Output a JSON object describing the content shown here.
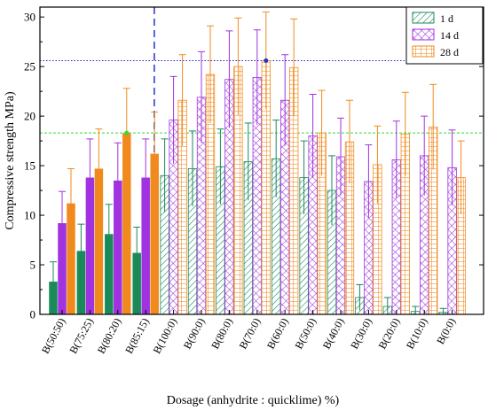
{
  "chart_data": {
    "type": "bar",
    "xlabel": "Dosage (anhydrite : quicklime) %)",
    "ylabel": "Compressive strength  MPa)",
    "ylim": [
      0,
      31
    ],
    "yticks": [
      0,
      5,
      10,
      15,
      20,
      25,
      30
    ],
    "categories": [
      "B(50:50)",
      "B(75:25)",
      "B(80:20)",
      "B(85:15)",
      "B(100:0)",
      "B(90:0)",
      "B(80:0)",
      "B(70:0)",
      "B(60:0)",
      "B(50:0)",
      "B(40:0)",
      "B(30:0)",
      "B(20:0)",
      "B(10:0)",
      "B(0:0)"
    ],
    "solid_categories": 4,
    "series": [
      {
        "name": "1 d",
        "color": "#1a8a5a",
        "values": [
          3.3,
          6.4,
          8.1,
          6.2,
          14.0,
          14.7,
          14.9,
          15.4,
          15.7,
          13.8,
          12.5,
          1.7,
          0.8,
          0.3,
          0.2
        ],
        "errors": [
          2.0,
          2.7,
          3.0,
          2.6,
          3.7,
          3.8,
          3.8,
          3.9,
          3.9,
          3.7,
          3.5,
          1.3,
          0.9,
          0.5,
          0.4
        ]
      },
      {
        "name": "14 d",
        "color": "#a032e0",
        "values": [
          9.2,
          13.8,
          13.5,
          13.8,
          19.6,
          21.9,
          23.7,
          23.9,
          21.6,
          18.0,
          15.9,
          13.4,
          15.6,
          16.0,
          14.8
        ],
        "errors": [
          3.2,
          3.9,
          3.8,
          3.9,
          4.4,
          4.6,
          4.9,
          4.8,
          4.6,
          4.2,
          3.9,
          3.7,
          3.9,
          4.0,
          3.8
        ]
      },
      {
        "name": "28 d",
        "color": "#f08a1e",
        "values": [
          11.2,
          14.7,
          18.3,
          16.2,
          21.6,
          24.2,
          25.0,
          25.6,
          24.9,
          18.3,
          17.4,
          15.1,
          18.2,
          18.9,
          13.8
        ],
        "errors": [
          3.5,
          4.0,
          4.5,
          4.2,
          4.6,
          4.9,
          4.9,
          4.9,
          4.9,
          4.3,
          4.2,
          3.9,
          4.2,
          4.3,
          3.7
        ]
      }
    ],
    "reference_lines": [
      {
        "y": 25.6,
        "color": "#2222cc",
        "style": "dotted"
      },
      {
        "y": 18.3,
        "color": "#33dd33",
        "style": "dashed"
      }
    ],
    "separator_after_category": "B(85:15)",
    "separator_color": "#2233cc",
    "highlight_markers": [
      {
        "series": "28 d",
        "category": "B(70:0)",
        "y": 25.6,
        "color": "#2233cc"
      },
      {
        "series": "28 d",
        "category": "B(80:20)",
        "y": 18.3,
        "color": "#33dd33"
      }
    ],
    "legend_position": "top-right"
  }
}
